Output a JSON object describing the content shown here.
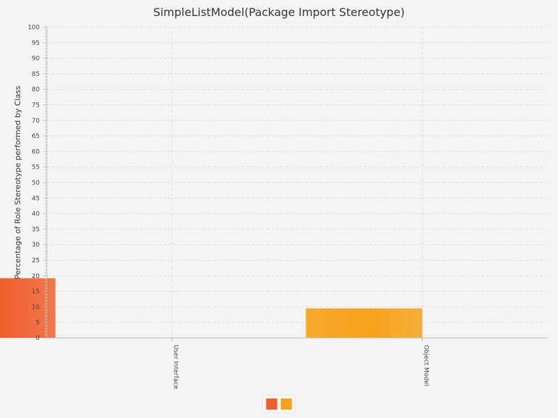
{
  "chart_data": {
    "type": "bar",
    "title": "SimpleListModel(Package Import Stereotype)",
    "xlabel": "",
    "ylabel": "Percentage of Role Stereotype performed by Class",
    "categories": [
      "User Interface",
      "Object Model"
    ],
    "series": [
      {
        "values": [
          19.2,
          0
        ],
        "color": "#f0602e"
      },
      {
        "values": [
          0,
          9.5
        ],
        "color": "#f7a21c"
      }
    ],
    "ylim": [
      0,
      100
    ],
    "ytick_step": 5,
    "grid": true,
    "legend": "bottom-center"
  }
}
